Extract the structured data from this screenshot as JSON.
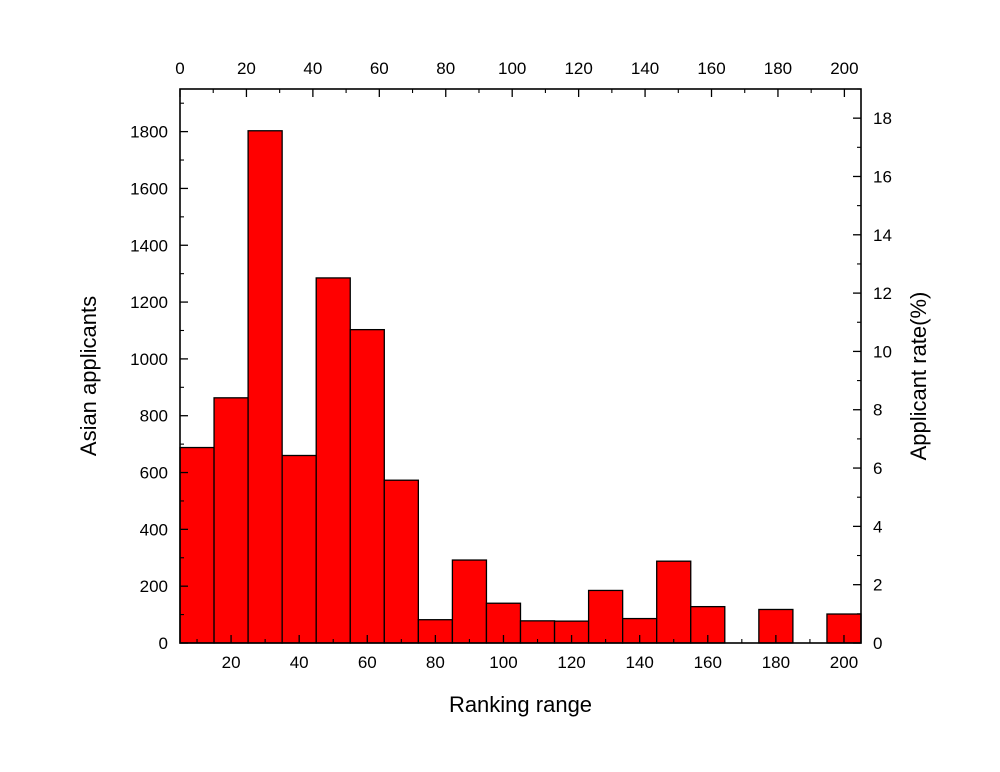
{
  "chart_data": {
    "type": "bar",
    "xlabel": "Ranking  range",
    "ylabel": "Asian applicants",
    "ylabel_right": "Applicant rate(%)",
    "bin_width": 10,
    "x": [
      10,
      20,
      30,
      40,
      50,
      60,
      70,
      80,
      90,
      100,
      110,
      120,
      130,
      140,
      150,
      160,
      170,
      180,
      190,
      200
    ],
    "values": [
      688,
      863,
      1803,
      660,
      1285,
      1103,
      573,
      82,
      292,
      140,
      78,
      77,
      185,
      86,
      288,
      128,
      0,
      118,
      0,
      102
    ],
    "xlim": [
      5,
      205
    ],
    "ylim": [
      0,
      1950
    ],
    "ylim_right": [
      0,
      19
    ],
    "bottom_x_ticks": [
      "20",
      "40",
      "60",
      "80",
      "100",
      "120",
      "140",
      "160",
      "180",
      "200"
    ],
    "top_x_ticks": [
      "0",
      "20",
      "40",
      "60",
      "80",
      "100",
      "120",
      "140",
      "160",
      "180",
      "200"
    ],
    "top_xlim": [
      0,
      205
    ],
    "left_y_ticks": [
      "0",
      "200",
      "400",
      "600",
      "800",
      "1000",
      "1200",
      "1400",
      "1600",
      "1800"
    ],
    "right_y_ticks": [
      "0",
      "2",
      "4",
      "6",
      "8",
      "10",
      "12",
      "14",
      "16",
      "18"
    ],
    "bar_color": "#ff0000",
    "edge_color": "#000000",
    "grid": false,
    "legend": "none"
  }
}
